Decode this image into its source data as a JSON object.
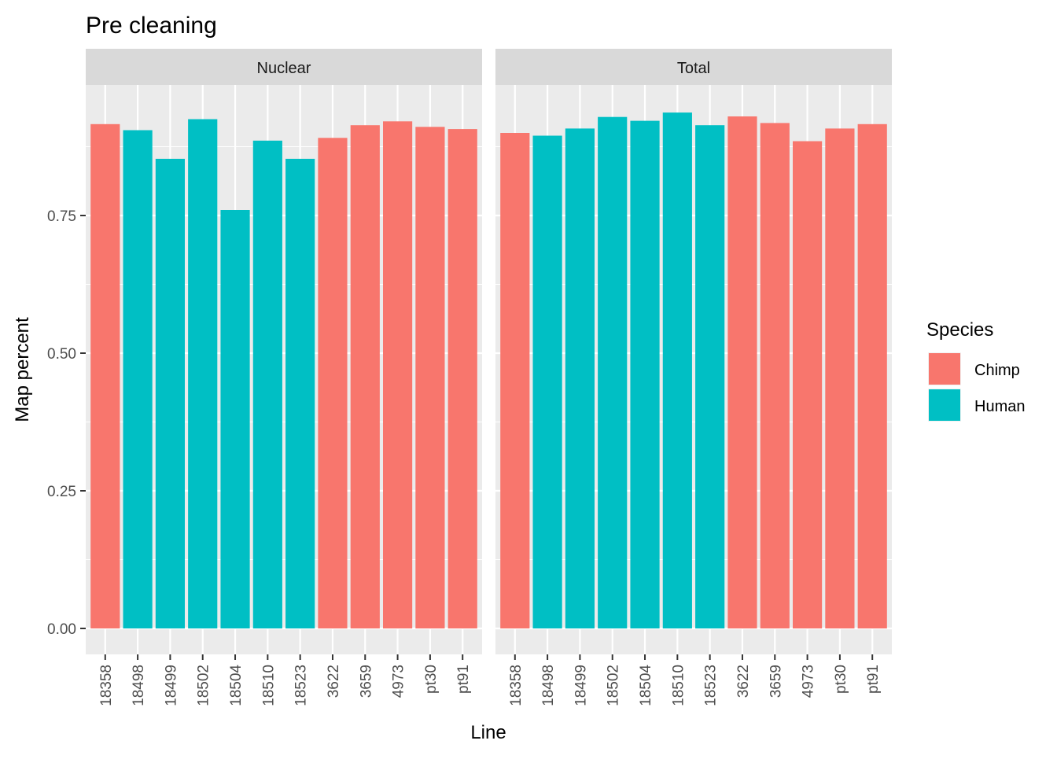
{
  "chart_data": {
    "type": "bar",
    "title": "Pre cleaning",
    "xlabel": "Line",
    "ylabel": "Map percent",
    "ylim": [
      0,
      0.97
    ],
    "yticks": [
      0.0,
      0.25,
      0.5,
      0.75
    ],
    "ytick_labels": [
      "0.00",
      "0.25",
      "0.50",
      "0.75"
    ],
    "grid": true,
    "categories": [
      "18358",
      "18498",
      "18499",
      "18502",
      "18504",
      "18510",
      "18523",
      "3622",
      "3659",
      "4973",
      "pt30",
      "pt91"
    ],
    "species": [
      "Chimp",
      "Human",
      "Human",
      "Human",
      "Human",
      "Human",
      "Human",
      "Chimp",
      "Chimp",
      "Chimp",
      "Chimp",
      "Chimp"
    ],
    "facets": [
      {
        "name": "Nuclear",
        "values": [
          0.916,
          0.905,
          0.853,
          0.925,
          0.76,
          0.886,
          0.853,
          0.891,
          0.914,
          0.921,
          0.911,
          0.907
        ]
      },
      {
        "name": "Total",
        "values": [
          0.9,
          0.895,
          0.908,
          0.929,
          0.922,
          0.937,
          0.914,
          0.93,
          0.918,
          0.885,
          0.908,
          0.916
        ]
      }
    ],
    "legend": {
      "title": "Species",
      "position": "right",
      "entries": [
        {
          "name": "Chimp",
          "color": "#F8766D"
        },
        {
          "name": "Human",
          "color": "#00BFC4"
        }
      ]
    }
  }
}
